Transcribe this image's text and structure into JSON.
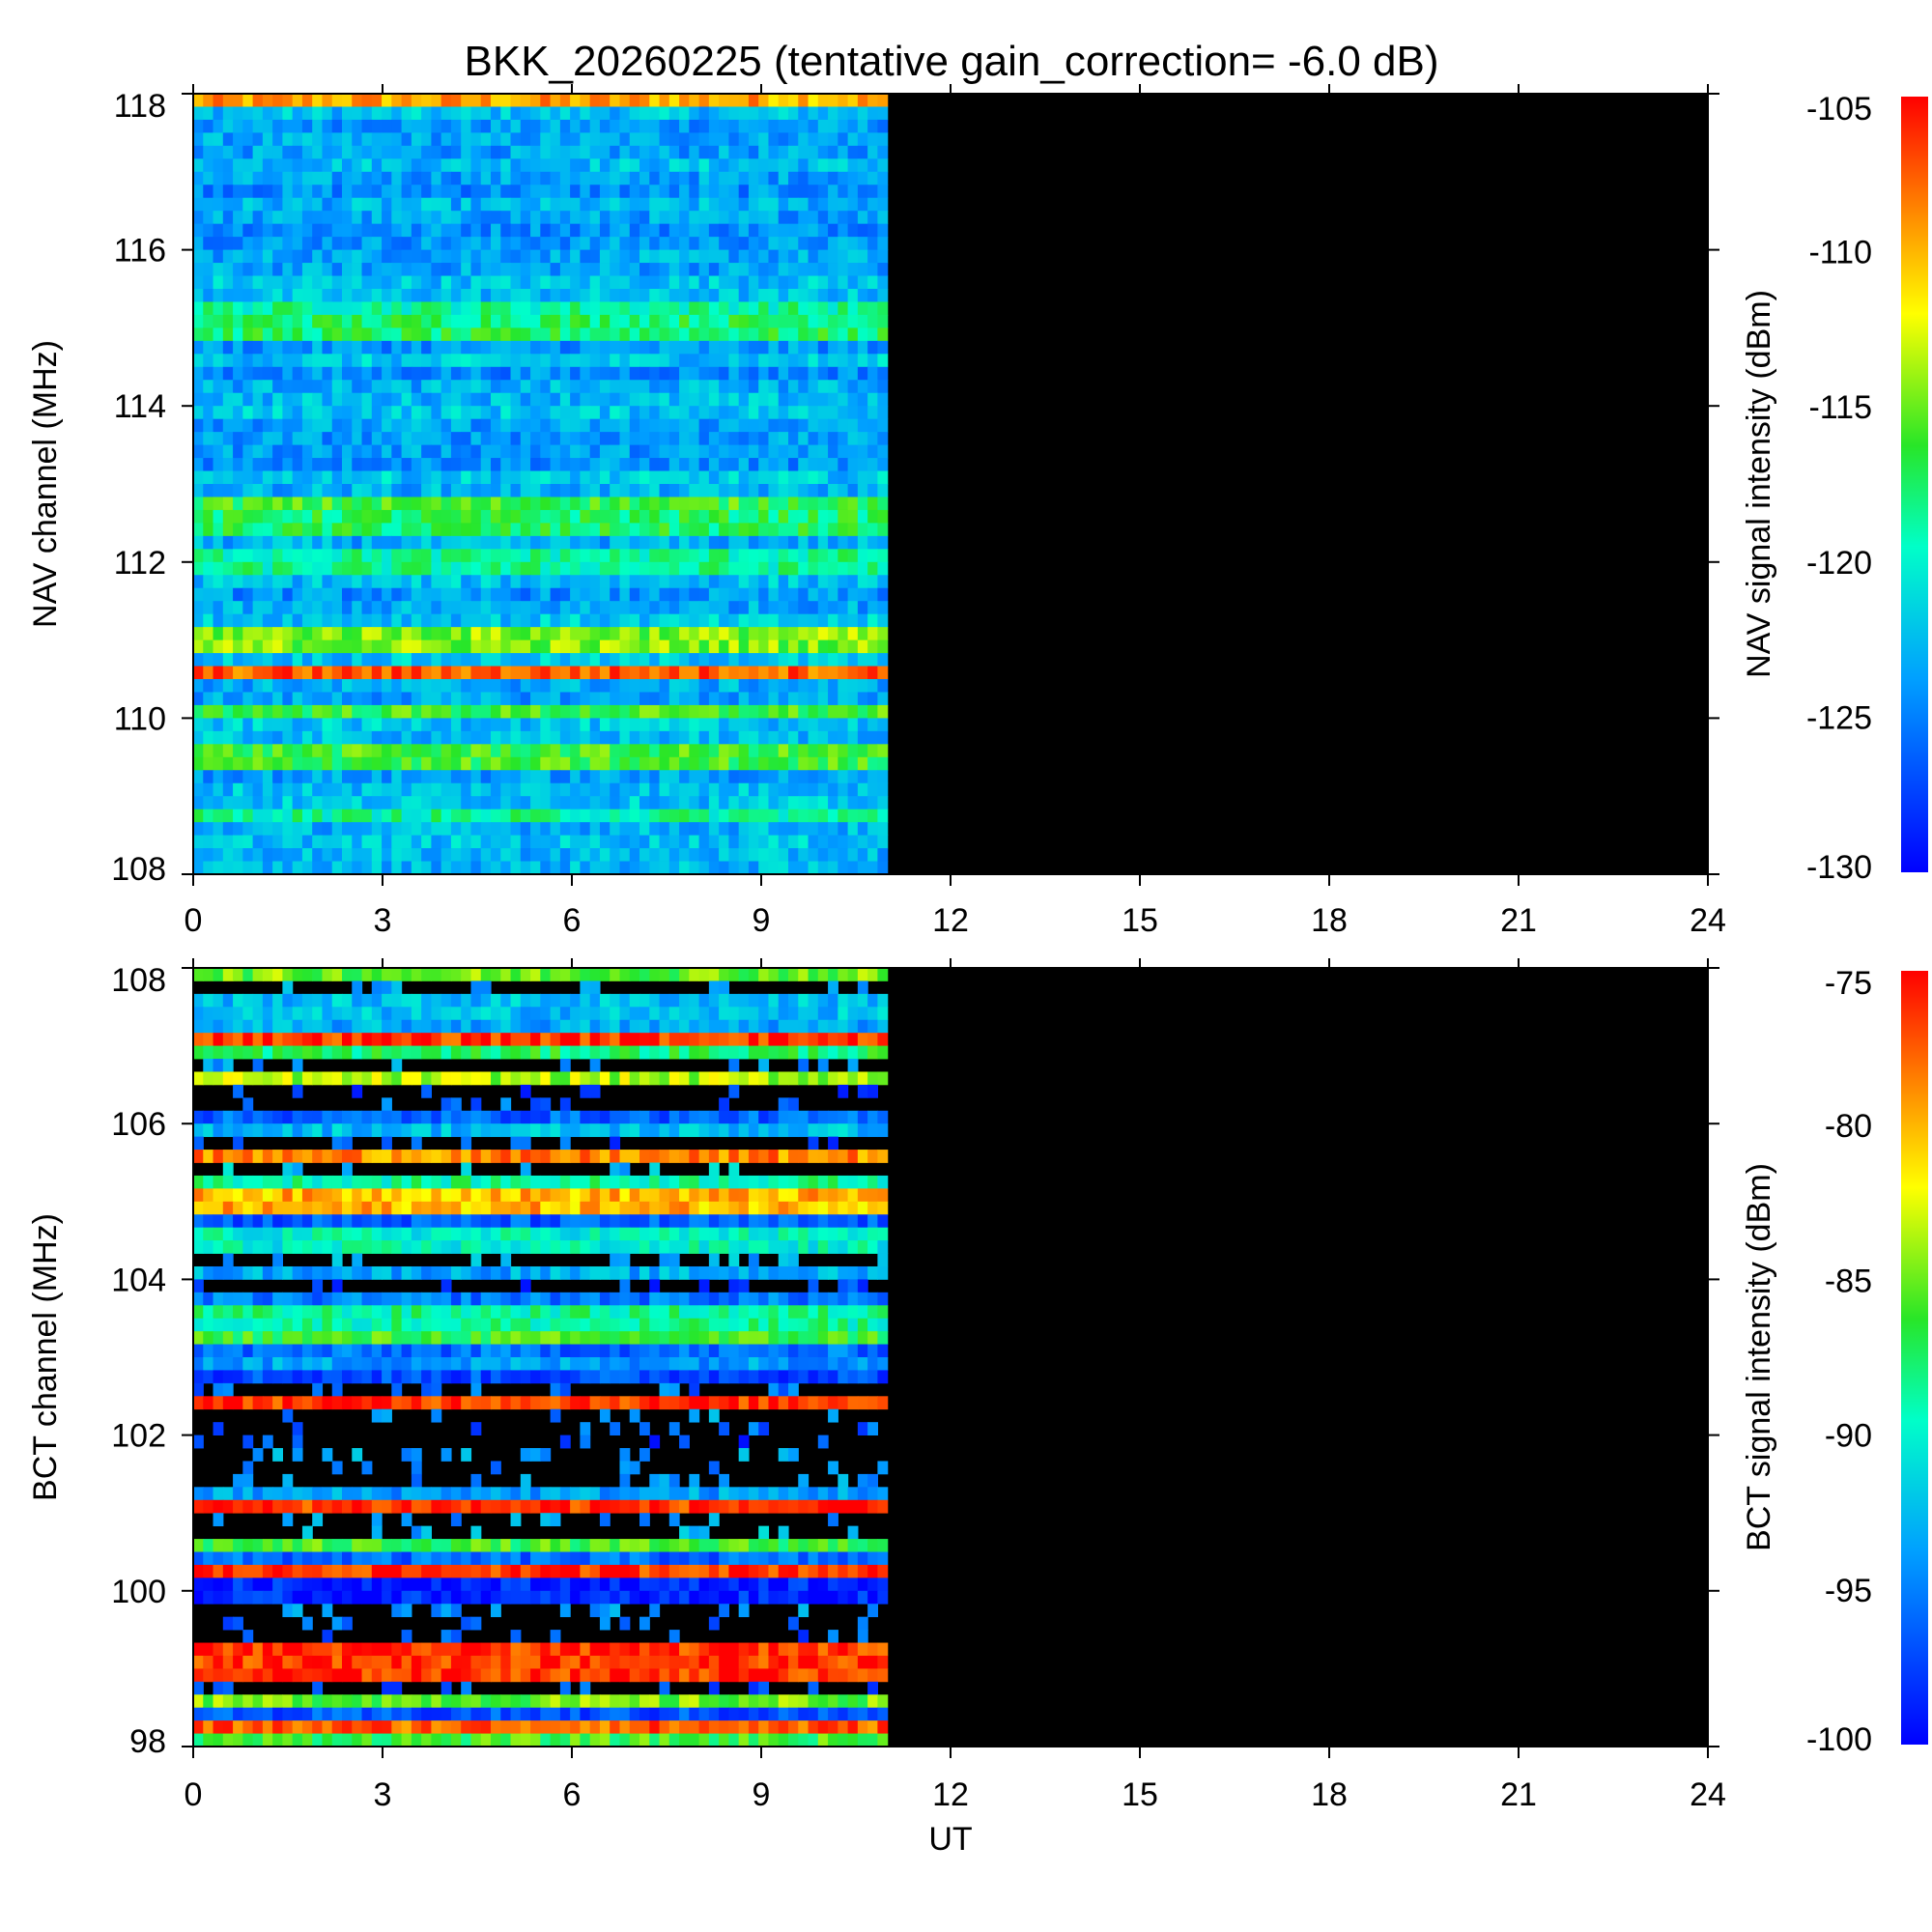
{
  "title": "BKK_20260225 (tentative gain_correction= -6.0 dB)",
  "chart_data": [
    {
      "type": "heatmap",
      "name": "NAV",
      "ylabel": "NAV channel (MHz)",
      "xlabel": "",
      "xlim": [
        0,
        24
      ],
      "ylim": [
        108,
        118
      ],
      "xticks": [
        0,
        3,
        6,
        9,
        12,
        15,
        18,
        21,
        24
      ],
      "yticks": [
        108,
        110,
        112,
        114,
        116,
        118
      ],
      "data_end_ut": 11,
      "colorbar": {
        "label": "NAV signal intensity (dBm)",
        "min": -130,
        "max": -105,
        "ticks": [
          -105,
          -110,
          -115,
          -120,
          -125,
          -130
        ]
      },
      "strong_bands": [
        {
          "mhz": 117.85,
          "level": 0.82
        },
        {
          "mhz": 115.2,
          "level": 0.45
        },
        {
          "mhz": 115.0,
          "level": 0.5
        },
        {
          "mhz": 112.8,
          "level": 0.55
        },
        {
          "mhz": 112.5,
          "level": 0.5
        },
        {
          "mhz": 112.0,
          "level": 0.45
        },
        {
          "mhz": 111.0,
          "level": 0.62
        },
        {
          "mhz": 110.55,
          "level": 0.9
        },
        {
          "mhz": 110.05,
          "level": 0.55
        },
        {
          "mhz": 109.5,
          "level": 0.55
        },
        {
          "mhz": 108.7,
          "level": 0.45
        }
      ]
    },
    {
      "type": "heatmap",
      "name": "BCT",
      "ylabel": "BCT channel (MHz)",
      "xlabel": "UT",
      "xlim": [
        0,
        24
      ],
      "ylim": [
        98,
        108
      ],
      "xticks": [
        0,
        3,
        6,
        9,
        12,
        15,
        18,
        21,
        24
      ],
      "yticks": [
        98,
        100,
        102,
        104,
        106,
        108
      ],
      "data_end_ut": 11,
      "colorbar": {
        "label": "BCT signal intensity (dBm)",
        "min": -100,
        "max": -75,
        "ticks": [
          -75,
          -80,
          -85,
          -90,
          -95,
          -100
        ]
      },
      "bands": [
        {
          "mhz": 107.9,
          "level": 0.6
        },
        {
          "mhz": 107.5,
          "level": 0.3
        },
        {
          "mhz": 107.1,
          "level": 0.95
        },
        {
          "mhz": 106.9,
          "level": 0.5
        },
        {
          "mhz": 106.6,
          "level": 0.65
        },
        {
          "mhz": 105.9,
          "level": 0.3
        },
        {
          "mhz": 105.6,
          "level": 0.85
        },
        {
          "mhz": 105.3,
          "level": 0.45
        },
        {
          "mhz": 105.0,
          "level": 0.8
        },
        {
          "mhz": 104.5,
          "level": 0.4
        },
        {
          "mhz": 103.5,
          "level": 0.45
        },
        {
          "mhz": 103.2,
          "level": 0.55
        },
        {
          "mhz": 102.4,
          "level": 0.95
        },
        {
          "mhz": 101.3,
          "level": 0.25
        },
        {
          "mhz": 101.1,
          "level": 0.95
        },
        {
          "mhz": 100.6,
          "level": 0.55
        },
        {
          "mhz": 100.3,
          "level": 0.95
        },
        {
          "mhz": 100.0,
          "level": 0.05
        },
        {
          "mhz": 99.3,
          "level": 0.95
        },
        {
          "mhz": 99.0,
          "level": 0.95
        },
        {
          "mhz": 98.6,
          "level": 0.6
        },
        {
          "mhz": 98.2,
          "level": 0.9
        },
        {
          "mhz": 98.0,
          "level": 0.55
        }
      ]
    }
  ]
}
